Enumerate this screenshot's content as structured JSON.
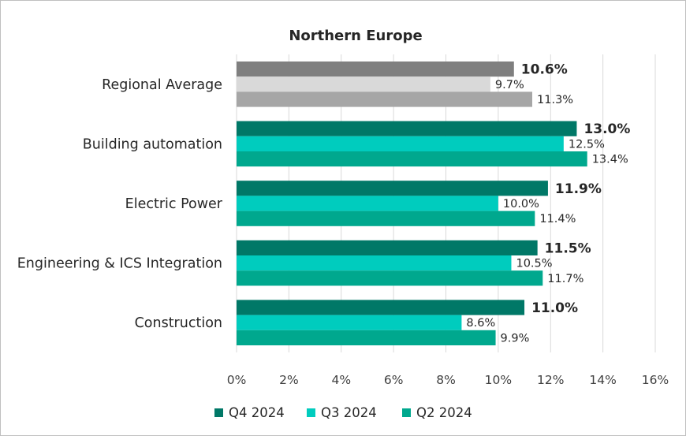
{
  "chart_data": {
    "type": "bar",
    "orientation": "horizontal",
    "title": "Northern Europe",
    "categories": [
      "Regional Average",
      "Building automation",
      "Electric Power",
      "Engineering & ICS Integration",
      "Construction"
    ],
    "series": [
      {
        "name": "Q4 2024",
        "values": [
          10.6,
          13.0,
          11.9,
          11.5,
          11.0
        ],
        "labels": [
          "10.6%",
          "13.0%",
          "11.9%",
          "11.5%",
          "11.0%"
        ]
      },
      {
        "name": "Q3 2024",
        "values": [
          9.7,
          12.5,
          10.0,
          10.5,
          8.6
        ],
        "labels": [
          "9.7%",
          "12.5%",
          "10.0%",
          "10.5%",
          "8.6%"
        ]
      },
      {
        "name": "Q2 2024",
        "values": [
          11.3,
          13.4,
          11.4,
          11.7,
          9.9
        ],
        "labels": [
          "11.3%",
          "13.4%",
          "11.4%",
          "11.7%",
          "9.9%"
        ]
      }
    ],
    "xlim": [
      0,
      16
    ],
    "x_ticks": [
      0,
      2,
      4,
      6,
      8,
      10,
      12,
      14,
      16
    ],
    "x_tick_labels": [
      "0%",
      "2%",
      "4%",
      "6%",
      "8%",
      "10%",
      "12%",
      "14%",
      "16%"
    ],
    "grid": "vertical",
    "legend": {
      "position": "bottom",
      "entries": [
        "Q4 2024",
        "Q3 2024",
        "Q2 2024"
      ]
    },
    "colors": {
      "Q4 2024": "#007867",
      "Q3 2024": "#00ccbe",
      "Q2 2024": "#00a88e",
      "regional": [
        "#7f7f7f",
        "#d9d9d9",
        "#a6a6a6"
      ]
    }
  }
}
